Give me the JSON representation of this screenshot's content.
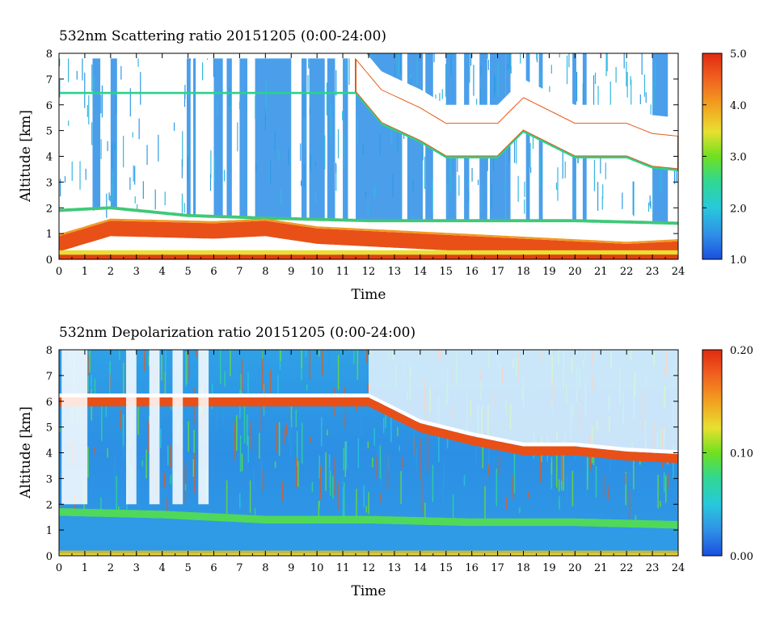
{
  "chart_data": [
    {
      "type": "heatmap",
      "title": "532nm Scattering ratio  20151205 (0:00-24:00)",
      "xlabel": "Time",
      "ylabel": "Altitude [km]",
      "xlim": [
        0,
        24
      ],
      "ylim": [
        0,
        8
      ],
      "x_ticks": [
        0,
        1,
        2,
        3,
        4,
        5,
        6,
        7,
        8,
        9,
        10,
        11,
        12,
        13,
        14,
        15,
        16,
        17,
        18,
        19,
        20,
        21,
        22,
        23,
        24
      ],
      "y_ticks": [
        0,
        1,
        2,
        3,
        4,
        5,
        6,
        7,
        8
      ],
      "colorbar": {
        "min": 1.0,
        "max": 5.0,
        "ticks": [
          "1.0",
          "2.0",
          "3.0",
          "4.0",
          "5.0"
        ]
      },
      "features": {
        "surface_layer_top_km": [
          [
            0,
            1.9
          ],
          [
            2,
            2.0
          ],
          [
            5,
            1.7
          ],
          [
            8,
            1.6
          ],
          [
            12,
            1.5
          ],
          [
            16,
            1.5
          ],
          [
            20,
            1.5
          ],
          [
            24,
            1.4
          ]
        ],
        "aerosol_layer_top_km": [
          [
            0,
            0.9
          ],
          [
            2,
            1.5
          ],
          [
            6,
            1.4
          ],
          [
            8,
            1.5
          ],
          [
            10,
            1.2
          ],
          [
            14,
            1.0
          ],
          [
            18,
            0.8
          ],
          [
            22,
            0.6
          ],
          [
            24,
            0.7
          ]
        ],
        "cloud_base_km": [
          [
            11.5,
            6.5
          ],
          [
            12.5,
            5.3
          ],
          [
            14,
            4.6
          ],
          [
            15,
            4.0
          ],
          [
            17,
            4.0
          ],
          [
            18,
            5.0
          ],
          [
            20,
            4.0
          ],
          [
            22,
            4.0
          ],
          [
            23,
            3.6
          ],
          [
            24,
            3.5
          ]
        ]
      }
    },
    {
      "type": "heatmap",
      "title": "532nm Depolarization ratio  20151205 (0:00-24:00)",
      "xlabel": "Time",
      "ylabel": "Altitude [km]",
      "xlim": [
        0,
        24
      ],
      "ylim": [
        0,
        8
      ],
      "x_ticks": [
        0,
        1,
        2,
        3,
        4,
        5,
        6,
        7,
        8,
        9,
        10,
        11,
        12,
        13,
        14,
        15,
        16,
        17,
        18,
        19,
        20,
        21,
        22,
        23,
        24
      ],
      "y_ticks": [
        0,
        1,
        2,
        3,
        4,
        5,
        6,
        7,
        8
      ],
      "colorbar": {
        "min": 0.0,
        "max": 0.2,
        "ticks": [
          "0.00",
          "0.10",
          "0.20"
        ]
      },
      "features": {
        "boundary_layer_top_km": [
          [
            0,
            1.6
          ],
          [
            4,
            1.5
          ],
          [
            8,
            1.3
          ],
          [
            12,
            1.3
          ],
          [
            16,
            1.2
          ],
          [
            20,
            1.2
          ],
          [
            24,
            1.1
          ]
        ],
        "cloud_base_km": [
          [
            12,
            5.8
          ],
          [
            14,
            4.8
          ],
          [
            16,
            4.3
          ],
          [
            18,
            3.9
          ],
          [
            20,
            3.9
          ],
          [
            22,
            3.7
          ],
          [
            24,
            3.6
          ]
        ]
      }
    }
  ]
}
